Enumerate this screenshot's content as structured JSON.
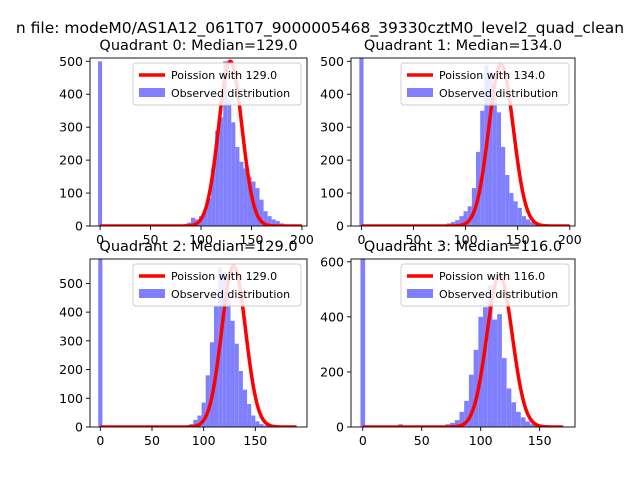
{
  "figure": {
    "suptitle": "n file: modeM0/AS1A12_061T07_9000005468_39330cztM0_level2_quad_clean"
  },
  "colors": {
    "hist": "#8080ff",
    "poisson": "#ff0000",
    "axis": "#000000",
    "legend_border": "#cccccc"
  },
  "chart_data": [
    {
      "type": "bar",
      "title": "Quadrant 0: Median=129.0",
      "xlim": [
        -10,
        205
      ],
      "ylim": [
        0,
        510
      ],
      "xticks": [
        0,
        50,
        100,
        150,
        200
      ],
      "yticks": [
        0,
        100,
        200,
        300,
        400,
        500
      ],
      "legend_position": "top-right",
      "median": 129.0,
      "poisson_label": "Poission with 129.0",
      "hist_label": "Observed distribution",
      "bin_width": 4,
      "bin_start": -2,
      "hist_values": [
        500,
        0,
        0,
        0,
        0,
        0,
        0,
        0,
        0,
        0,
        0,
        0,
        0,
        0,
        0,
        0,
        0,
        0,
        0,
        0,
        2,
        5,
        10,
        25,
        20,
        30,
        45,
        85,
        175,
        290,
        330,
        500,
        385,
        315,
        240,
        195,
        175,
        150,
        135,
        115,
        80,
        45,
        30,
        20,
        15,
        8,
        5,
        3,
        1,
        0,
        0
      ],
      "curve_peak": 500,
      "curve_sigma": 11.5,
      "curve_x_range": [
        0,
        200
      ]
    },
    {
      "type": "bar",
      "title": "Quadrant 1: Median=134.0",
      "xlim": [
        -10,
        205
      ],
      "ylim": [
        0,
        510
      ],
      "xticks": [
        0,
        50,
        100,
        150,
        200
      ],
      "yticks": [
        0,
        100,
        200,
        300,
        400,
        500
      ],
      "legend_position": "top-right",
      "median": 134.0,
      "poisson_label": "Poission with 134.0",
      "hist_label": "Observed distribution",
      "bin_width": 4,
      "bin_start": -2,
      "hist_values": [
        510,
        0,
        0,
        0,
        0,
        0,
        0,
        0,
        0,
        0,
        0,
        0,
        0,
        0,
        0,
        0,
        0,
        0,
        0,
        1,
        3,
        8,
        12,
        18,
        30,
        45,
        60,
        115,
        225,
        350,
        490,
        470,
        390,
        345,
        240,
        155,
        100,
        75,
        55,
        30,
        20,
        12,
        5,
        2,
        1,
        0,
        0,
        0,
        0,
        0,
        0
      ],
      "curve_peak": 490,
      "curve_sigma": 11.8,
      "curve_x_range": [
        0,
        200
      ]
    },
    {
      "type": "bar",
      "title": "Quadrant 2: Median=129.0",
      "xlim": [
        -10,
        200
      ],
      "ylim": [
        0,
        585
      ],
      "xticks": [
        0,
        50,
        100,
        150
      ],
      "yticks": [
        0,
        100,
        200,
        300,
        400,
        500
      ],
      "legend_position": "top-right",
      "median": 129.0,
      "poisson_label": "Poission with 129.0",
      "hist_label": "Observed distribution",
      "bin_width": 4,
      "bin_start": -2,
      "hist_values": [
        585,
        0,
        0,
        0,
        0,
        0,
        0,
        0,
        0,
        0,
        0,
        0,
        0,
        0,
        0,
        0,
        0,
        0,
        0,
        0,
        1,
        5,
        10,
        25,
        40,
        85,
        180,
        295,
        420,
        555,
        540,
        460,
        370,
        290,
        195,
        130,
        80,
        40,
        20,
        10,
        5,
        2,
        0,
        0,
        0,
        0,
        0,
        0,
        0,
        0,
        0
      ],
      "curve_peak": 560,
      "curve_sigma": 11.5,
      "curve_x_range": [
        0,
        190
      ]
    },
    {
      "type": "bar",
      "title": "Quadrant 3: Median=116.0",
      "xlim": [
        -10,
        180
      ],
      "ylim": [
        0,
        610
      ],
      "xticks": [
        0,
        50,
        100,
        150
      ],
      "yticks": [
        0,
        200,
        400,
        600
      ],
      "legend_position": "top-right",
      "median": 116.0,
      "poisson_label": "Poission with 116.0",
      "hist_label": "Observed distribution",
      "bin_width": 4,
      "bin_start": -2,
      "hist_values": [
        610,
        0,
        0,
        0,
        0,
        0,
        0,
        0,
        10,
        0,
        0,
        0,
        0,
        0,
        0,
        0,
        0,
        0,
        10,
        15,
        25,
        55,
        95,
        190,
        280,
        400,
        435,
        515,
        390,
        410,
        250,
        140,
        90,
        55,
        35,
        20,
        10,
        5,
        2,
        0,
        0,
        0,
        0,
        0,
        0,
        0,
        0,
        0,
        0,
        0,
        0
      ],
      "curve_peak": 550,
      "curve_sigma": 10.8,
      "curve_x_range": [
        0,
        170
      ]
    }
  ]
}
